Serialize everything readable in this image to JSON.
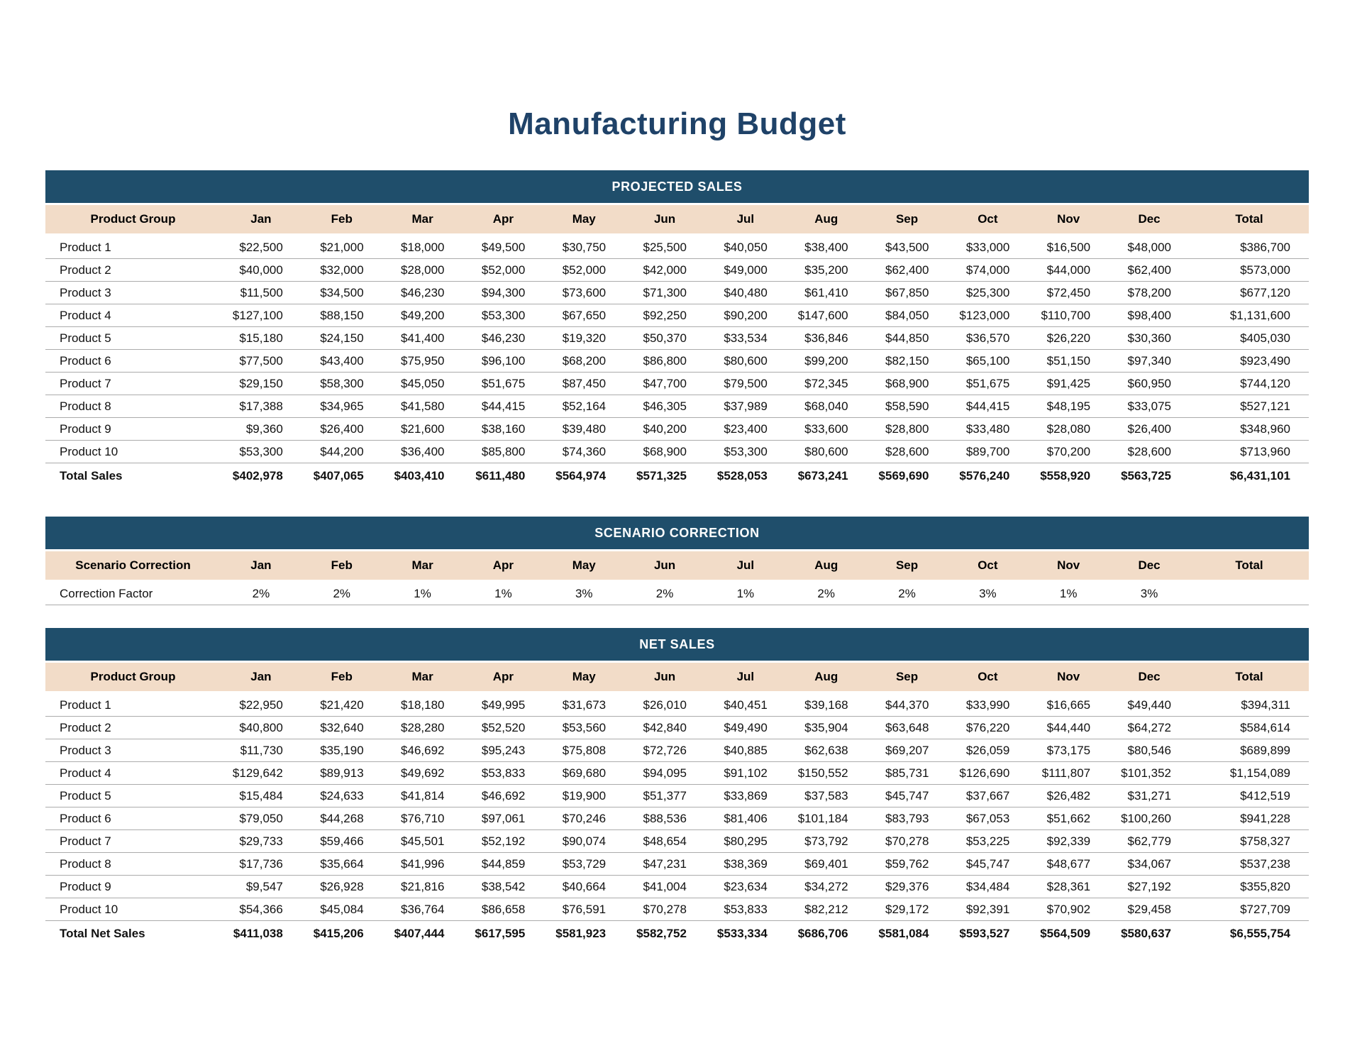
{
  "page_title": "Manufacturing Budget",
  "colors": {
    "banner_blue": "#1F4E6B",
    "header_tan": "#F2DCC8",
    "title_navy": "#1F4268",
    "row_border_gray": "#ababab"
  },
  "columns": [
    "Jan",
    "Feb",
    "Mar",
    "Apr",
    "May",
    "Jun",
    "Jul",
    "Aug",
    "Sep",
    "Oct",
    "Nov",
    "Dec",
    "Total"
  ],
  "tables": [
    {
      "banner": "PROJECTED SALES",
      "row_header_label": "Product Group",
      "align": "right",
      "rows": [
        {
          "label": "Product 1",
          "values": [
            "$22,500",
            "$21,000",
            "$18,000",
            "$49,500",
            "$30,750",
            "$25,500",
            "$40,050",
            "$38,400",
            "$43,500",
            "$33,000",
            "$16,500",
            "$48,000",
            "$386,700"
          ]
        },
        {
          "label": "Product 2",
          "values": [
            "$40,000",
            "$32,000",
            "$28,000",
            "$52,000",
            "$52,000",
            "$42,000",
            "$49,000",
            "$35,200",
            "$62,400",
            "$74,000",
            "$44,000",
            "$62,400",
            "$573,000"
          ]
        },
        {
          "label": "Product 3",
          "values": [
            "$11,500",
            "$34,500",
            "$46,230",
            "$94,300",
            "$73,600",
            "$71,300",
            "$40,480",
            "$61,410",
            "$67,850",
            "$25,300",
            "$72,450",
            "$78,200",
            "$677,120"
          ]
        },
        {
          "label": "Product 4",
          "values": [
            "$127,100",
            "$88,150",
            "$49,200",
            "$53,300",
            "$67,650",
            "$92,250",
            "$90,200",
            "$147,600",
            "$84,050",
            "$123,000",
            "$110,700",
            "$98,400",
            "$1,131,600"
          ]
        },
        {
          "label": "Product 5",
          "values": [
            "$15,180",
            "$24,150",
            "$41,400",
            "$46,230",
            "$19,320",
            "$50,370",
            "$33,534",
            "$36,846",
            "$44,850",
            "$36,570",
            "$26,220",
            "$30,360",
            "$405,030"
          ]
        },
        {
          "label": "Product 6",
          "values": [
            "$77,500",
            "$43,400",
            "$75,950",
            "$96,100",
            "$68,200",
            "$86,800",
            "$80,600",
            "$99,200",
            "$82,150",
            "$65,100",
            "$51,150",
            "$97,340",
            "$923,490"
          ]
        },
        {
          "label": "Product 7",
          "values": [
            "$29,150",
            "$58,300",
            "$45,050",
            "$51,675",
            "$87,450",
            "$47,700",
            "$79,500",
            "$72,345",
            "$68,900",
            "$51,675",
            "$91,425",
            "$60,950",
            "$744,120"
          ]
        },
        {
          "label": "Product 8",
          "values": [
            "$17,388",
            "$34,965",
            "$41,580",
            "$44,415",
            "$52,164",
            "$46,305",
            "$37,989",
            "$68,040",
            "$58,590",
            "$44,415",
            "$48,195",
            "$33,075",
            "$527,121"
          ]
        },
        {
          "label": "Product 9",
          "values": [
            "$9,360",
            "$26,400",
            "$21,600",
            "$38,160",
            "$39,480",
            "$40,200",
            "$23,400",
            "$33,600",
            "$28,800",
            "$33,480",
            "$28,080",
            "$26,400",
            "$348,960"
          ]
        },
        {
          "label": "Product 10",
          "values": [
            "$53,300",
            "$44,200",
            "$36,400",
            "$85,800",
            "$74,360",
            "$68,900",
            "$53,300",
            "$80,600",
            "$28,600",
            "$89,700",
            "$70,200",
            "$28,600",
            "$713,960"
          ]
        }
      ],
      "total_row": {
        "label": "Total Sales",
        "values": [
          "$402,978",
          "$407,065",
          "$403,410",
          "$611,480",
          "$564,974",
          "$571,325",
          "$528,053",
          "$673,241",
          "$569,690",
          "$576,240",
          "$558,920",
          "$563,725",
          "$6,431,101"
        ]
      }
    },
    {
      "banner": "SCENARIO CORRECTION",
      "row_header_label": "Scenario Correction",
      "align": "center",
      "rows": [
        {
          "label": "Correction Factor",
          "values": [
            "2%",
            "2%",
            "1%",
            "1%",
            "3%",
            "2%",
            "1%",
            "2%",
            "2%",
            "3%",
            "1%",
            "3%",
            ""
          ]
        }
      ],
      "total_row": null
    },
    {
      "banner": "NET SALES",
      "row_header_label": "Product Group",
      "align": "right",
      "rows": [
        {
          "label": "Product 1",
          "values": [
            "$22,950",
            "$21,420",
            "$18,180",
            "$49,995",
            "$31,673",
            "$26,010",
            "$40,451",
            "$39,168",
            "$44,370",
            "$33,990",
            "$16,665",
            "$49,440",
            "$394,311"
          ]
        },
        {
          "label": "Product 2",
          "values": [
            "$40,800",
            "$32,640",
            "$28,280",
            "$52,520",
            "$53,560",
            "$42,840",
            "$49,490",
            "$35,904",
            "$63,648",
            "$76,220",
            "$44,440",
            "$64,272",
            "$584,614"
          ]
        },
        {
          "label": "Product 3",
          "values": [
            "$11,730",
            "$35,190",
            "$46,692",
            "$95,243",
            "$75,808",
            "$72,726",
            "$40,885",
            "$62,638",
            "$69,207",
            "$26,059",
            "$73,175",
            "$80,546",
            "$689,899"
          ]
        },
        {
          "label": "Product 4",
          "values": [
            "$129,642",
            "$89,913",
            "$49,692",
            "$53,833",
            "$69,680",
            "$94,095",
            "$91,102",
            "$150,552",
            "$85,731",
            "$126,690",
            "$111,807",
            "$101,352",
            "$1,154,089"
          ]
        },
        {
          "label": "Product 5",
          "values": [
            "$15,484",
            "$24,633",
            "$41,814",
            "$46,692",
            "$19,900",
            "$51,377",
            "$33,869",
            "$37,583",
            "$45,747",
            "$37,667",
            "$26,482",
            "$31,271",
            "$412,519"
          ]
        },
        {
          "label": "Product 6",
          "values": [
            "$79,050",
            "$44,268",
            "$76,710",
            "$97,061",
            "$70,246",
            "$88,536",
            "$81,406",
            "$101,184",
            "$83,793",
            "$67,053",
            "$51,662",
            "$100,260",
            "$941,228"
          ]
        },
        {
          "label": "Product 7",
          "values": [
            "$29,733",
            "$59,466",
            "$45,501",
            "$52,192",
            "$90,074",
            "$48,654",
            "$80,295",
            "$73,792",
            "$70,278",
            "$53,225",
            "$92,339",
            "$62,779",
            "$758,327"
          ]
        },
        {
          "label": "Product 8",
          "values": [
            "$17,736",
            "$35,664",
            "$41,996",
            "$44,859",
            "$53,729",
            "$47,231",
            "$38,369",
            "$69,401",
            "$59,762",
            "$45,747",
            "$48,677",
            "$34,067",
            "$537,238"
          ]
        },
        {
          "label": "Product 9",
          "values": [
            "$9,547",
            "$26,928",
            "$21,816",
            "$38,542",
            "$40,664",
            "$41,004",
            "$23,634",
            "$34,272",
            "$29,376",
            "$34,484",
            "$28,361",
            "$27,192",
            "$355,820"
          ]
        },
        {
          "label": "Product 10",
          "values": [
            "$54,366",
            "$45,084",
            "$36,764",
            "$86,658",
            "$76,591",
            "$70,278",
            "$53,833",
            "$82,212",
            "$29,172",
            "$92,391",
            "$70,902",
            "$29,458",
            "$727,709"
          ]
        }
      ],
      "total_row": {
        "label": "Total Net Sales",
        "values": [
          "$411,038",
          "$415,206",
          "$407,444",
          "$617,595",
          "$581,923",
          "$582,752",
          "$533,334",
          "$686,706",
          "$581,084",
          "$593,527",
          "$564,509",
          "$580,637",
          "$6,555,754"
        ]
      }
    }
  ]
}
